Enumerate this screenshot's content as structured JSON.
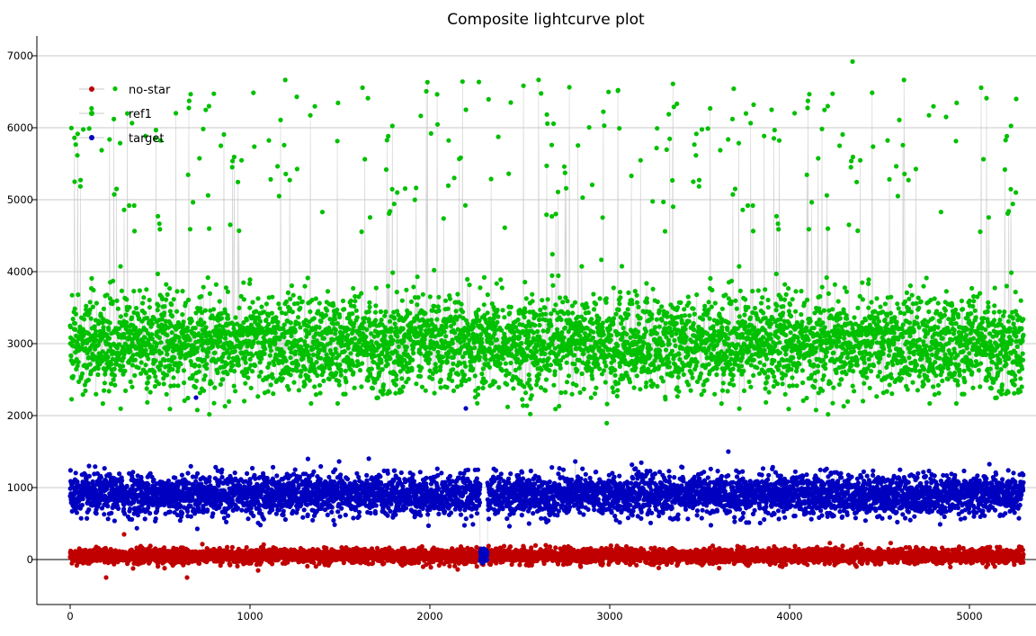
{
  "chart_data": {
    "type": "scatter",
    "title": "Composite lightcurve plot",
    "xlabel": "",
    "ylabel": "",
    "xlim": [
      -190,
      5370
    ],
    "ylim": [
      -620,
      7320
    ],
    "x_ticks": [
      0,
      1000,
      2000,
      3000,
      4000,
      5000
    ],
    "x_tick_labels": [
      "0",
      "1000",
      "2000",
      "3000",
      "4000",
      "5000"
    ],
    "y_ticks": [
      0,
      1000,
      2000,
      3000,
      4000,
      5000,
      6000,
      7000
    ],
    "y_tick_labels": [
      "0",
      "1000",
      "2000",
      "3000",
      "4000",
      "5000",
      "6000",
      "7000"
    ],
    "grid": true,
    "legend_position": "top-left",
    "point_count_per_series": 5300,
    "series": [
      {
        "name": "no-star",
        "color": "#c00000",
        "line_color": "#c8c8c8",
        "approx_mean": 50,
        "approx_spread": 100,
        "x_range": [
          0,
          5300
        ],
        "notable_points": [
          [
            200,
            -250
          ],
          [
            650,
            -250
          ],
          [
            300,
            350
          ]
        ]
      },
      {
        "name": "ref1",
        "color": "#00c000",
        "line_color": "#c8c8c8",
        "approx_mean": 3000,
        "approx_spread": 650,
        "x_range": [
          0,
          5300
        ],
        "notable_points": [
          [
            1260,
            6430
          ],
          [
            2450,
            6350
          ],
          [
            4350,
            6920
          ],
          [
            4870,
            6150
          ],
          [
            5260,
            6400
          ],
          [
            3800,
            6320
          ],
          [
            3900,
            6250
          ]
        ]
      },
      {
        "name": "target",
        "color": "#0000c0",
        "line_color": "#c8c8c8",
        "approx_mean": 900,
        "approx_spread": 280,
        "x_range": [
          0,
          5300
        ],
        "notable_points": [
          [
            2300,
            0
          ],
          [
            700,
            2250
          ],
          [
            2200,
            2100
          ]
        ]
      }
    ]
  }
}
